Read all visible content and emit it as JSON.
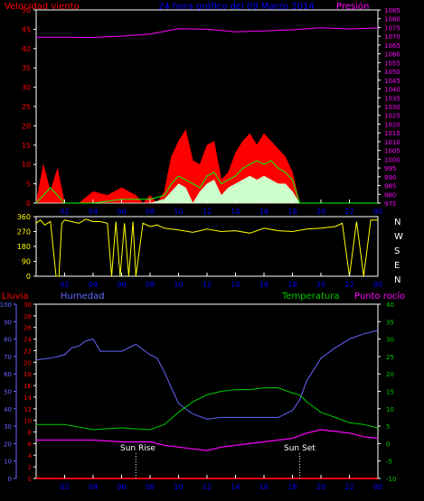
{
  "header": {
    "left_title": "Velocidad viento",
    "center_title": "24 hora gráfico del 09 Marzo 2014",
    "right_title": "Presión"
  },
  "bottom_header": {
    "lluvia": "Lluvia",
    "humedad": "Humedad",
    "temperatura": "Temperatura",
    "punto_rocio": "Punto rocío"
  },
  "annotations": {
    "sun_rise": "Sun Rise",
    "sun_set": "Sun Set",
    "sun_rise_hour": 7,
    "sun_set_hour": 18.5
  },
  "compass": [
    "N",
    "W",
    "S",
    "E",
    "N"
  ],
  "colors": {
    "wind_gust": "#ff0000",
    "wind_avg": "#00ff00",
    "wind_min": "#ccffcc",
    "pressure": "#ff00ff",
    "direction": "#ffff00",
    "humidity": "#6666ff",
    "temperature": "#00cc00",
    "dewpoint": "#ff00ff",
    "rain": "#ff0000",
    "left_axis_wind": "#ff0000",
    "center_title": "#0000ff",
    "right_axis_pressure": "#ff00ff",
    "axis_rain": "#ff0000",
    "axis_humidity": "#6666ff",
    "axis_temperature": "#00cc00",
    "axis_time": "#0000ff",
    "axis_direction": "#ffff00"
  },
  "chart_data": [
    {
      "type": "line",
      "name": "wind",
      "x_ticks": [
        "02",
        "04",
        "06",
        "08",
        "10",
        "12",
        "14",
        "16",
        "18",
        "20",
        "22",
        "00"
      ],
      "ylim": [
        0,
        50
      ],
      "y_ticks": [
        0,
        5,
        10,
        15,
        20,
        25,
        30,
        35,
        40,
        45,
        50
      ],
      "y2lim": [
        975,
        1085
      ],
      "y2_ticks": [
        975,
        980,
        985,
        990,
        995,
        1000,
        1005,
        1010,
        1015,
        1020,
        1025,
        1030,
        1035,
        1040,
        1045,
        1050,
        1055,
        1060,
        1065,
        1070,
        1075,
        1080,
        1085
      ],
      "pressure": {
        "x": [
          0,
          2,
          4,
          6,
          8,
          10,
          12,
          14,
          16,
          18,
          20,
          22,
          24
        ],
        "y": [
          1069.5,
          1069.5,
          1069.3,
          1070.1,
          1071.2,
          1074.3,
          1074.0,
          1072.5,
          1073.0,
          1073.7,
          1074.8,
          1074.2,
          1074.7
        ]
      },
      "gust": {
        "x": [
          0,
          0.5,
          1.0,
          1.5,
          2.0,
          3.0,
          4.0,
          5.0,
          6.0,
          7.0,
          7.5,
          8.0,
          8.5,
          9.0,
          9.5,
          10.0,
          10.5,
          11.0,
          11.5,
          12.0,
          12.5,
          13.0,
          13.5,
          14.0,
          14.5,
          15.0,
          15.5,
          16.0,
          16.5,
          17.0,
          17.5,
          18.0,
          18.5,
          19.0,
          20.0,
          21.0,
          22.0,
          23.0,
          24.0
        ],
        "y": [
          0,
          10,
          3,
          9,
          0,
          0,
          3,
          2,
          4,
          2,
          0,
          2,
          0,
          3,
          12,
          16,
          19,
          11,
          10,
          15,
          16,
          6,
          8,
          13,
          16,
          18,
          15,
          18,
          16,
          14,
          12,
          8,
          0,
          0,
          0,
          0,
          0,
          0,
          0
        ]
      },
      "average": {
        "x": [
          0,
          1.0,
          2.0,
          4.0,
          6.0,
          8.0,
          9.0,
          9.5,
          10.0,
          10.5,
          11.0,
          11.5,
          12.0,
          12.5,
          13.0,
          13.5,
          14.0,
          14.5,
          15.0,
          15.5,
          16.0,
          16.5,
          17.0,
          17.5,
          18.0,
          18.5,
          19.0,
          24.0
        ],
        "y": [
          0,
          4,
          0,
          0,
          1,
          1,
          2,
          5,
          7,
          6,
          5,
          4,
          7,
          8,
          5,
          6,
          7,
          9,
          10,
          11,
          10,
          11,
          9,
          8,
          6,
          0,
          0,
          0
        ]
      },
      "minimum": {
        "x": [
          0,
          2,
          8,
          9,
          9.5,
          10,
          10.5,
          11,
          11.5,
          12,
          12.5,
          13,
          13.5,
          14,
          14.5,
          15,
          15.5,
          16,
          16.5,
          17,
          17.5,
          18,
          18.5,
          24
        ],
        "y": [
          0,
          0,
          0,
          1,
          3,
          5,
          4,
          0,
          3,
          5,
          6,
          2,
          4,
          5,
          6,
          7,
          6,
          7,
          6,
          5,
          5,
          3,
          0,
          0
        ]
      }
    },
    {
      "type": "line",
      "name": "direction",
      "x_ticks": [
        "02",
        "04",
        "06",
        "08",
        "10",
        "12",
        "14",
        "16",
        "18",
        "20",
        "22",
        "00"
      ],
      "ylim": [
        0,
        360
      ],
      "y_ticks": [
        0,
        90,
        180,
        270,
        360
      ],
      "points": {
        "x": [
          0,
          0.3,
          0.6,
          1.0,
          1.4,
          1.6,
          1.8,
          2.0,
          2.5,
          3.0,
          3.5,
          4.0,
          4.5,
          5.0,
          5.3,
          5.6,
          5.9,
          6.2,
          6.5,
          6.8,
          7.0,
          7.5,
          8.0,
          8.5,
          9.0,
          10.0,
          11.0,
          12.0,
          13.0,
          14.0,
          15.0,
          16.0,
          17.0,
          18.0,
          19.0,
          20.0,
          21.0,
          21.5,
          22.0,
          22.5,
          23.0,
          23.5,
          24.0
        ],
        "y": [
          320,
          340,
          310,
          330,
          0,
          0,
          320,
          340,
          330,
          320,
          345,
          330,
          330,
          320,
          0,
          330,
          0,
          320,
          0,
          330,
          0,
          320,
          300,
          310,
          290,
          280,
          265,
          285,
          270,
          275,
          260,
          290,
          275,
          270,
          285,
          290,
          300,
          320,
          0,
          330,
          0,
          340,
          340
        ]
      }
    },
    {
      "type": "line",
      "name": "climate",
      "x_ticks": [
        "02",
        "04",
        "06",
        "08",
        "10",
        "12",
        "14",
        "16",
        "18",
        "20",
        "22",
        "00"
      ],
      "rain_axis": {
        "ylim": [
          0,
          30
        ],
        "ticks": [
          0,
          2,
          4,
          6,
          8,
          10,
          12,
          14,
          16,
          18,
          20,
          22,
          24,
          26,
          28,
          30
        ]
      },
      "humidity_axis": {
        "ylim": [
          0,
          100
        ],
        "ticks": [
          0,
          10,
          20,
          30,
          40,
          50,
          60,
          70,
          80,
          90,
          100
        ]
      },
      "temperature_axis": {
        "ylim": [
          -10,
          40
        ],
        "ticks": [
          -10,
          -5,
          0,
          5,
          10,
          15,
          20,
          25,
          30,
          35,
          40
        ]
      },
      "humidity": {
        "x": [
          0,
          1,
          2,
          2.5,
          3,
          3.5,
          4,
          4.5,
          5,
          6,
          7,
          8,
          8.5,
          9,
          9.5,
          10,
          11,
          12,
          13,
          14,
          15,
          16,
          17,
          18,
          18.5,
          19,
          20,
          21,
          22,
          23,
          24
        ],
        "y": [
          68,
          69,
          71,
          75,
          76,
          79,
          80,
          73,
          73,
          73,
          77,
          71,
          69,
          61,
          52,
          43,
          37,
          34,
          35,
          35,
          35,
          35,
          35,
          39,
          45,
          56,
          69,
          75,
          80,
          83,
          85
        ]
      },
      "temperature": {
        "x": [
          0,
          2,
          4,
          6,
          8,
          9,
          10,
          11,
          12,
          13,
          14,
          15,
          16,
          17,
          18,
          18.5,
          19,
          20,
          21,
          22,
          23,
          24
        ],
        "y": [
          5.5,
          5.5,
          4,
          4.5,
          4,
          5.5,
          9,
          12,
          14,
          15,
          15.5,
          15.5,
          16,
          16,
          14.5,
          14,
          12,
          9,
          7.5,
          6,
          5.5,
          4.5
        ]
      },
      "dewpoint": {
        "x": [
          0,
          2,
          4,
          6,
          8,
          9,
          10,
          11,
          12,
          13,
          14,
          15,
          16,
          17,
          18,
          19,
          20,
          21,
          22,
          23,
          24
        ],
        "y": [
          1,
          1,
          1,
          0.5,
          0.5,
          -0.5,
          -1,
          -1.5,
          -2,
          -1,
          -0.5,
          0,
          0.5,
          1,
          1.5,
          3,
          4,
          3.5,
          3,
          2,
          1.5
        ]
      },
      "rain": {
        "x": [
          0,
          24
        ],
        "y": [
          0,
          0
        ]
      }
    }
  ]
}
